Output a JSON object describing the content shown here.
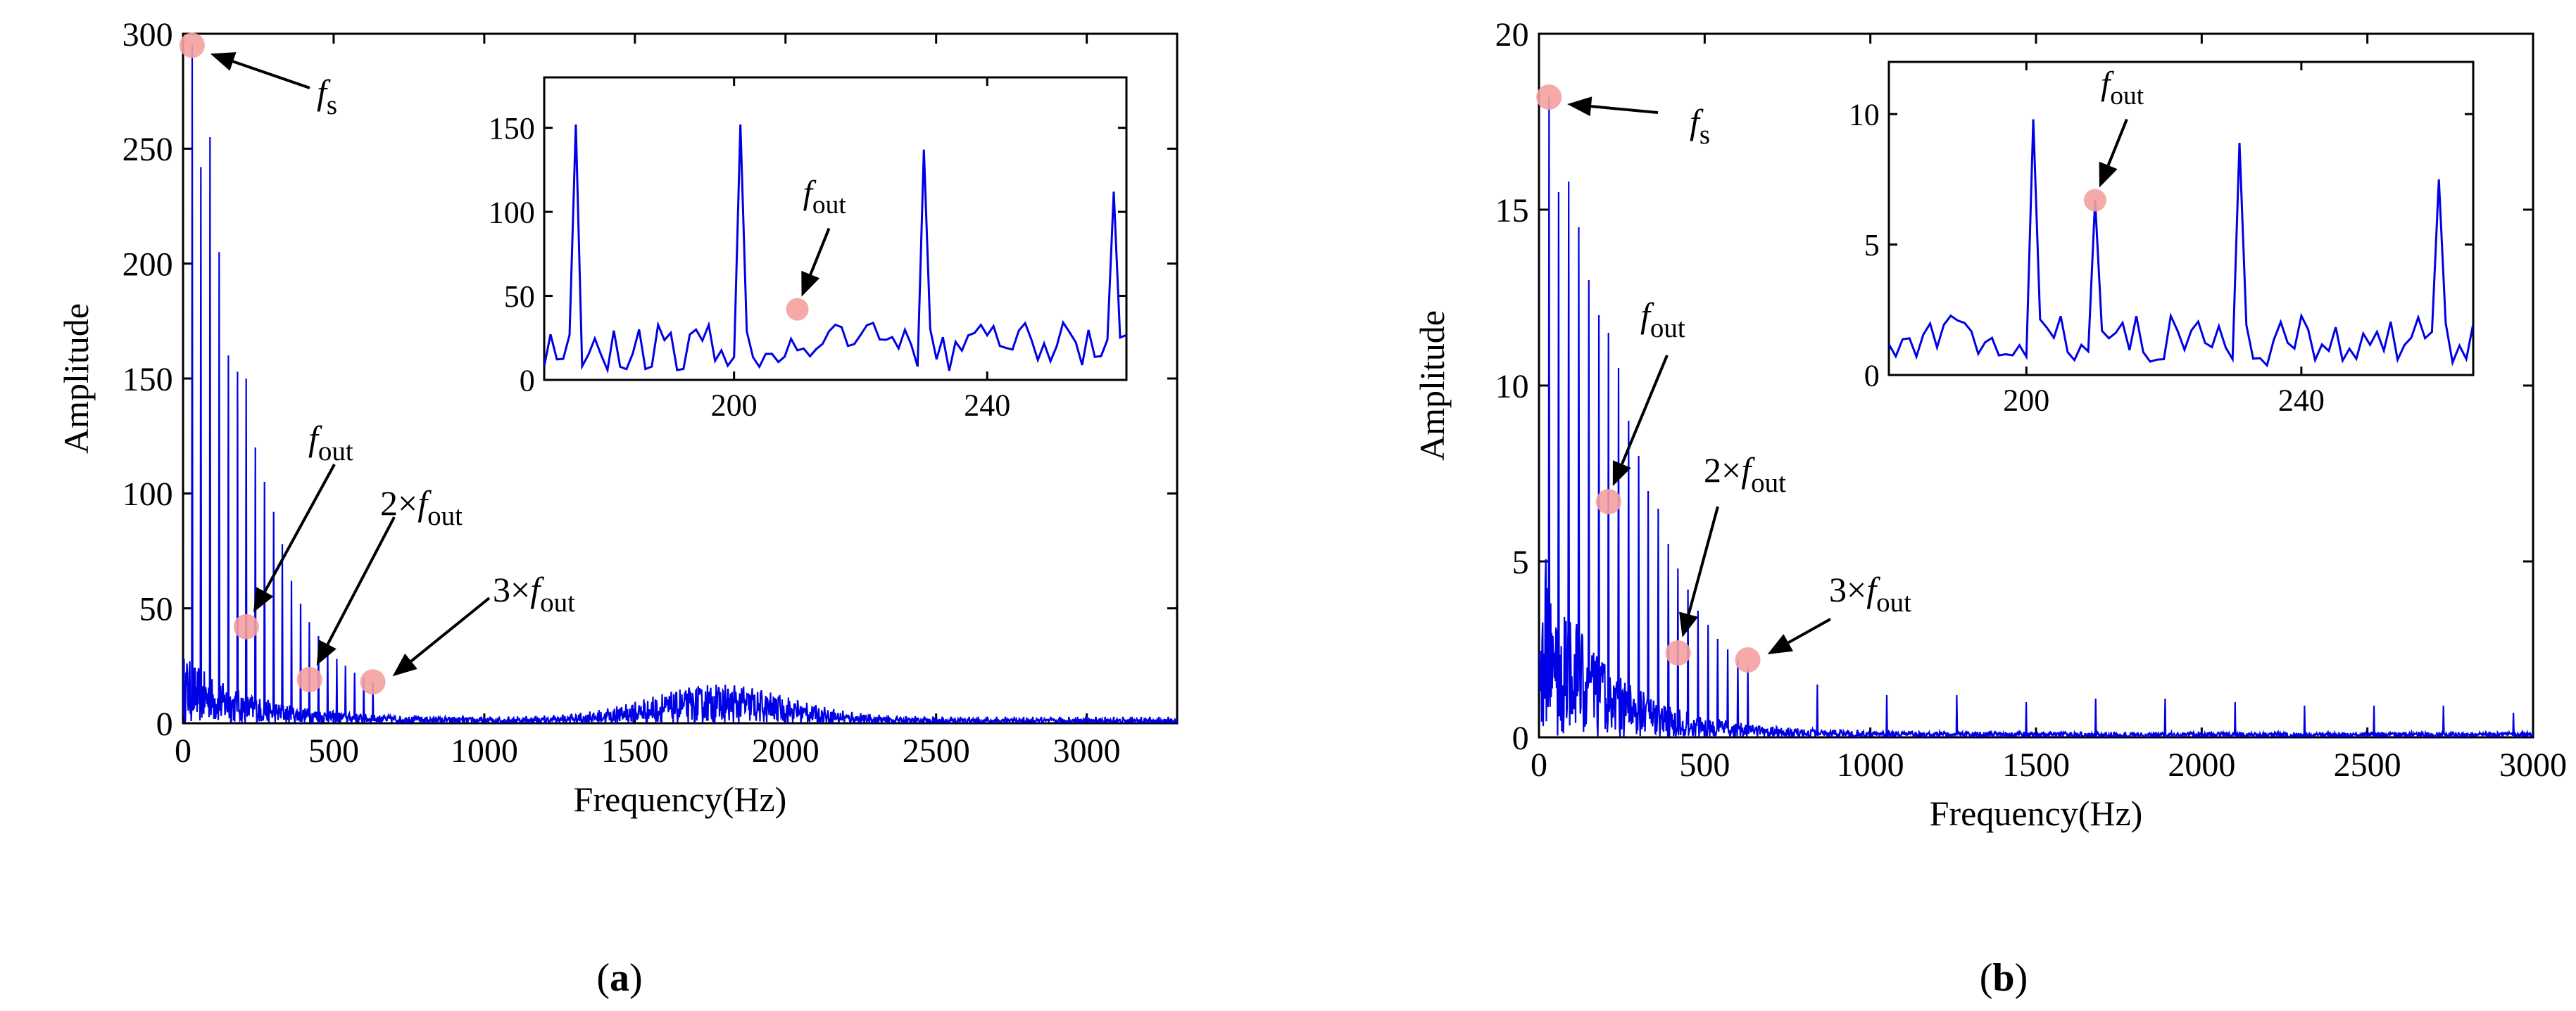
{
  "colors": {
    "signal": "#0000e6",
    "marker": "#f4a0a0",
    "axis": "#000000"
  },
  "chart_data": [
    {
      "id": "a",
      "type": "line",
      "panel_label": "a",
      "xlabel": "Frequency(Hz)",
      "ylabel": "Amplitude",
      "xlim": [
        0,
        3300
      ],
      "ylim": [
        0,
        300
      ],
      "xticks": [
        0,
        500,
        1000,
        1500,
        2000,
        2500,
        3000
      ],
      "yticks": [
        0,
        50,
        100,
        150,
        200,
        250,
        300
      ],
      "fundamental_hz": 30,
      "harmonic_peaks": [
        295,
        242,
        255,
        205,
        160,
        153,
        150,
        120,
        105,
        92,
        78,
        62,
        52,
        44,
        38,
        34,
        28,
        25,
        22,
        20,
        18
      ],
      "broad_hump": {
        "center_hz": 1780,
        "width_hz": 320,
        "peak_amplitude": 14
      },
      "noise_floor": {
        "start": 28,
        "decay_hz": 230,
        "base": 2
      },
      "markers": [
        {
          "x": 30,
          "y": 295,
          "label_main": "f",
          "label_sub": "s",
          "label_pre": ""
        },
        {
          "x": 210,
          "y": 42,
          "label_main": "f",
          "label_sub": "out",
          "label_pre": ""
        },
        {
          "x": 420,
          "y": 19,
          "label_main": "f",
          "label_sub": "out",
          "label_pre": "2×"
        },
        {
          "x": 630,
          "y": 18,
          "label_main": "f",
          "label_sub": "out",
          "label_pre": "3×"
        }
      ],
      "inset": {
        "xlim": [
          170,
          262
        ],
        "ylim": [
          0,
          180
        ],
        "xticks": [
          200,
          240
        ],
        "yticks": [
          0,
          50,
          100,
          150
        ],
        "peaks": [
          {
            "x": 175,
            "y": 152
          },
          {
            "x": 201,
            "y": 152
          },
          {
            "x": 230,
            "y": 137
          },
          {
            "x": 260,
            "y": 112
          }
        ],
        "marker": {
          "x": 210,
          "y": 42,
          "label_main": "f",
          "label_sub": "out"
        }
      }
    },
    {
      "id": "b",
      "type": "line",
      "panel_label": "b",
      "xlabel": "Frequency(Hz)",
      "ylabel": "Amplitude",
      "xlim": [
        0,
        3000
      ],
      "ylim": [
        0,
        20
      ],
      "xticks": [
        0,
        500,
        1000,
        1500,
        2000,
        2500,
        3000
      ],
      "yticks": [
        0,
        5,
        10,
        15,
        20
      ],
      "fundamental_hz": 30,
      "harmonic_peaks": [
        18.2,
        15.5,
        15.8,
        14.5,
        13,
        12,
        11.5,
        10.5,
        9,
        8,
        7,
        6.5,
        5.5,
        4.8,
        4.2,
        3.6,
        3.2,
        2.8,
        2.5,
        2.2,
        2.0
      ],
      "sparse_peaks": [
        {
          "x": 840,
          "y": 1.5
        },
        {
          "x": 1050,
          "y": 1.2
        },
        {
          "x": 1260,
          "y": 1.2
        },
        {
          "x": 1470,
          "y": 1.0
        },
        {
          "x": 1680,
          "y": 1.1
        },
        {
          "x": 1890,
          "y": 1.1
        },
        {
          "x": 2100,
          "y": 1.0
        },
        {
          "x": 2310,
          "y": 0.9
        },
        {
          "x": 2520,
          "y": 0.9
        },
        {
          "x": 2730,
          "y": 0.9
        },
        {
          "x": 2940,
          "y": 0.7
        }
      ],
      "noise_floor": {
        "start": 5.5,
        "decay_hz": 200,
        "base": 0.15
      },
      "markers": [
        {
          "x": 30,
          "y": 18.2,
          "label_main": "f",
          "label_sub": "s",
          "label_pre": ""
        },
        {
          "x": 210,
          "y": 6.7,
          "label_main": "f",
          "label_sub": "out",
          "label_pre": ""
        },
        {
          "x": 420,
          "y": 2.4,
          "label_main": "f",
          "label_sub": "out",
          "label_pre": "2×"
        },
        {
          "x": 630,
          "y": 2.2,
          "label_main": "f",
          "label_sub": "out",
          "label_pre": "3×"
        }
      ],
      "inset": {
        "xlim": [
          180,
          265
        ],
        "ylim": [
          0,
          12
        ],
        "xticks": [
          200,
          240
        ],
        "yticks": [
          0,
          5,
          10
        ],
        "peaks": [
          {
            "x": 201,
            "y": 9.8
          },
          {
            "x": 210,
            "y": 6.7
          },
          {
            "x": 231,
            "y": 8.9
          },
          {
            "x": 260,
            "y": 7.5
          }
        ],
        "marker": {
          "x": 210,
          "y": 6.7,
          "label_main": "f",
          "label_sub": "out"
        }
      }
    }
  ]
}
